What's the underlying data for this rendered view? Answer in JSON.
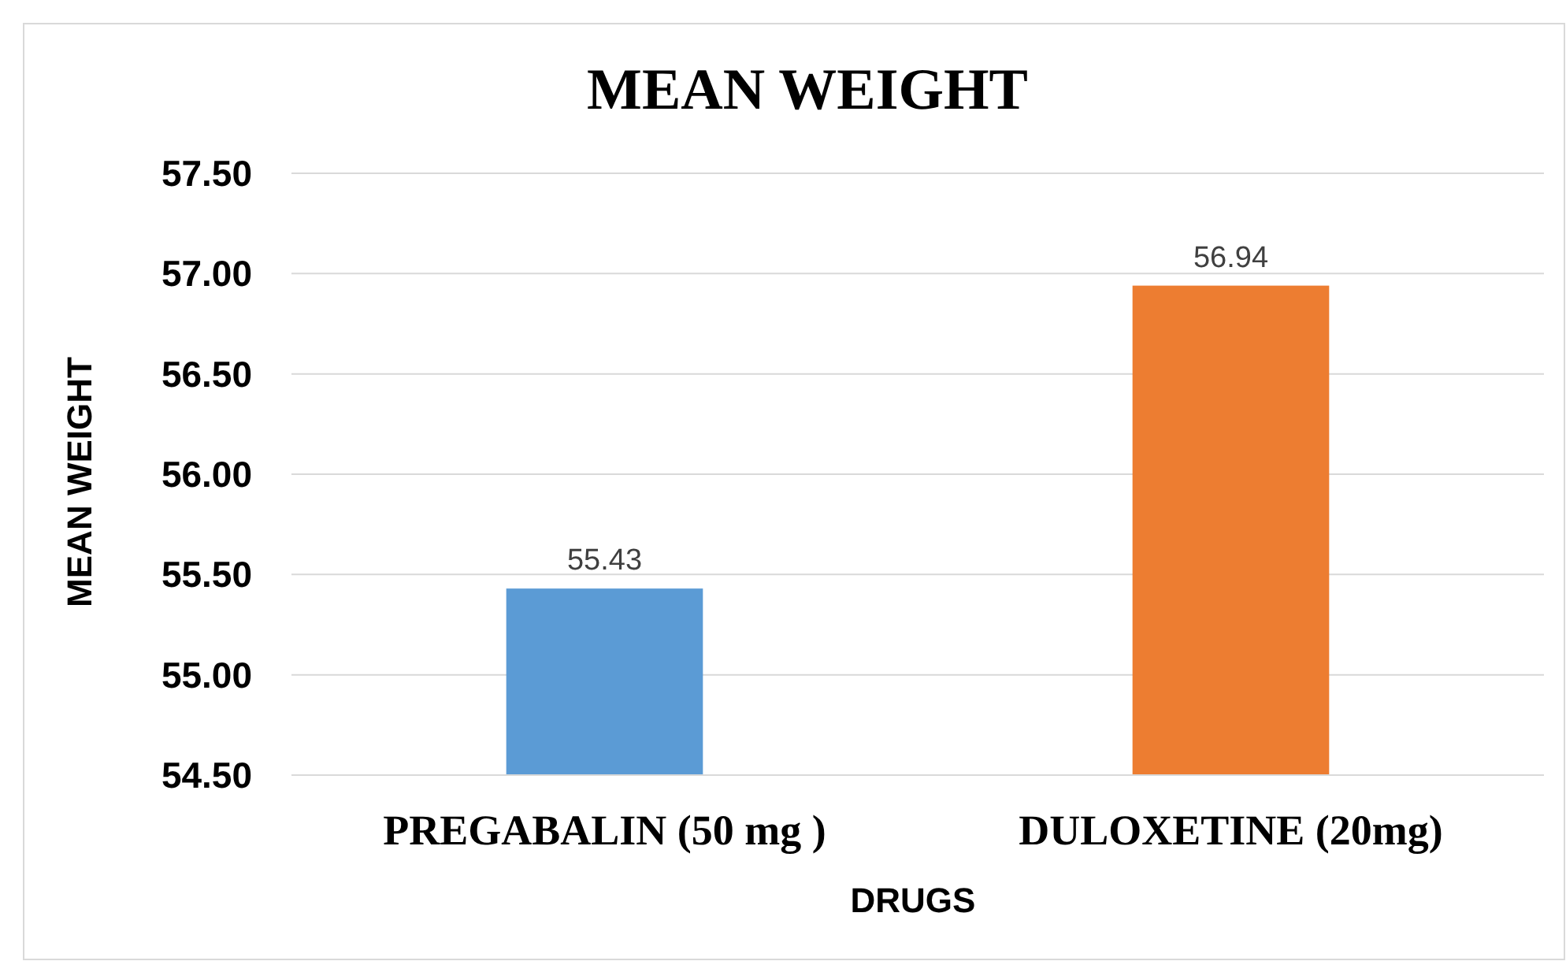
{
  "chart_data": {
    "type": "bar",
    "title": "MEAN WEIGHT",
    "xlabel": "DRUGS",
    "ylabel": "MEAN WEIGHT",
    "categories": [
      "PREGABALIN (50 mg )",
      "DULOXETINE (20mg)"
    ],
    "values": [
      55.43,
      56.94
    ],
    "colors": [
      "#5b9bd5",
      "#ed7d31"
    ],
    "ylim": [
      54.5,
      57.5
    ],
    "yticks": [
      {
        "value": 54.5,
        "label": "54.50"
      },
      {
        "value": 55,
        "label": "55.00"
      },
      {
        "value": 55.5,
        "label": "55.50"
      },
      {
        "value": 56,
        "label": "56.00"
      },
      {
        "value": 56.5,
        "label": "56.50"
      },
      {
        "value": 57,
        "label": "57.00"
      },
      {
        "value": 57.5,
        "label": "57.50"
      }
    ],
    "grid": "y",
    "data_labels": true
  }
}
